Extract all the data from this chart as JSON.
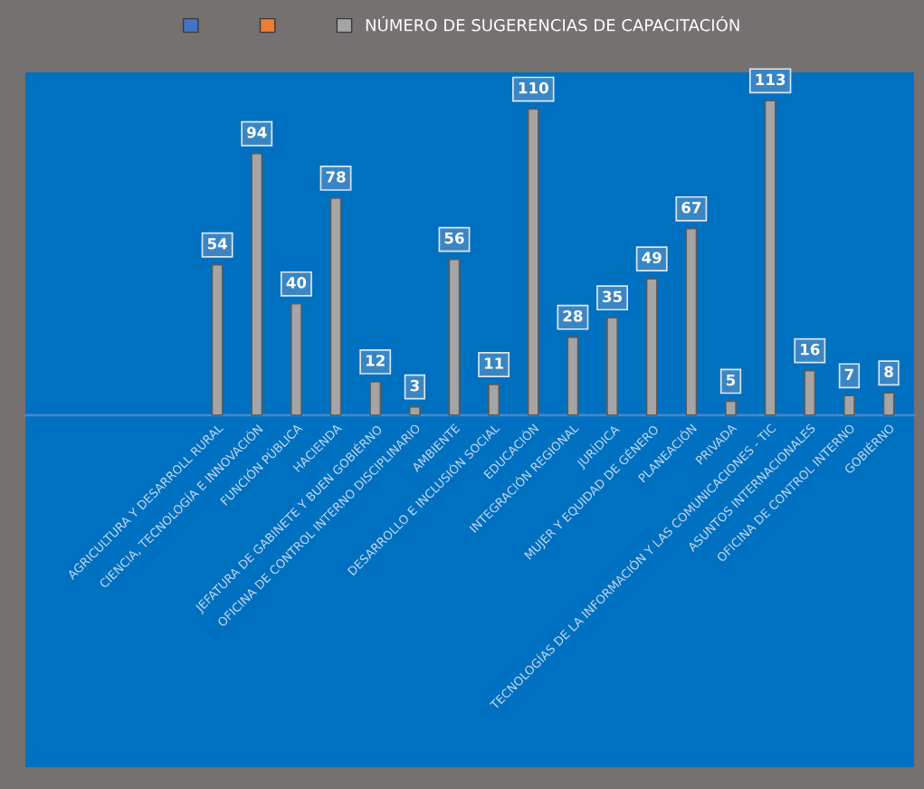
{
  "chart_data": {
    "type": "bar",
    "categories": [
      "AGRICULTURA Y DESARROLL RURAL",
      "CIENCIA, TECNOLOGÍA E INNOVACIÓN",
      "FUNCIÓN PÚBLICA",
      "HACIENDA",
      "JEFATURA DE GABINETE Y BUEN GOBIÉRNO",
      "OFICINA DE CONTROL INTERNO DISCIPLINARIO",
      "AMBIENTE",
      "DESARROLLO E INCLUSIÓN SOCIAL",
      "EDUCACIÓN",
      "INTEGRACIÓN REGIONAL",
      "JURÍDICA",
      "MUJER Y EQUIDAD DE GÉNERO",
      "PLANEACIÓN",
      "PRIVADA",
      "TECNOLOGÍAS DE LA INFORMACIÓN Y LAS COMUNICACIONES - TIC",
      "ASUNTOS INTERNACIONALES",
      "OFICINA DE CONTROL INTERNO",
      "GOBIÉRNO"
    ],
    "series": [
      {
        "color": "#4472c4",
        "values": [
          null,
          null,
          null,
          null,
          null,
          null,
          null,
          null,
          null,
          null,
          null,
          null,
          null,
          null,
          null,
          null,
          null,
          null
        ]
      },
      {
        "color": "#ed7d31",
        "values": [
          null,
          null,
          null,
          null,
          null,
          null,
          null,
          null,
          null,
          null,
          null,
          null,
          null,
          null,
          null,
          null,
          null,
          null
        ]
      },
      {
        "name": "NÚMERO DE SUGERENCIAS DE CAPACITACIÓN",
        "color": "#a5a5a5",
        "values": [
          54,
          94,
          40,
          78,
          12,
          3,
          56,
          11,
          110,
          28,
          35,
          49,
          67,
          5,
          113,
          16,
          7,
          8
        ]
      }
    ],
    "data_labels": true,
    "legend": "top",
    "grid": false
  }
}
